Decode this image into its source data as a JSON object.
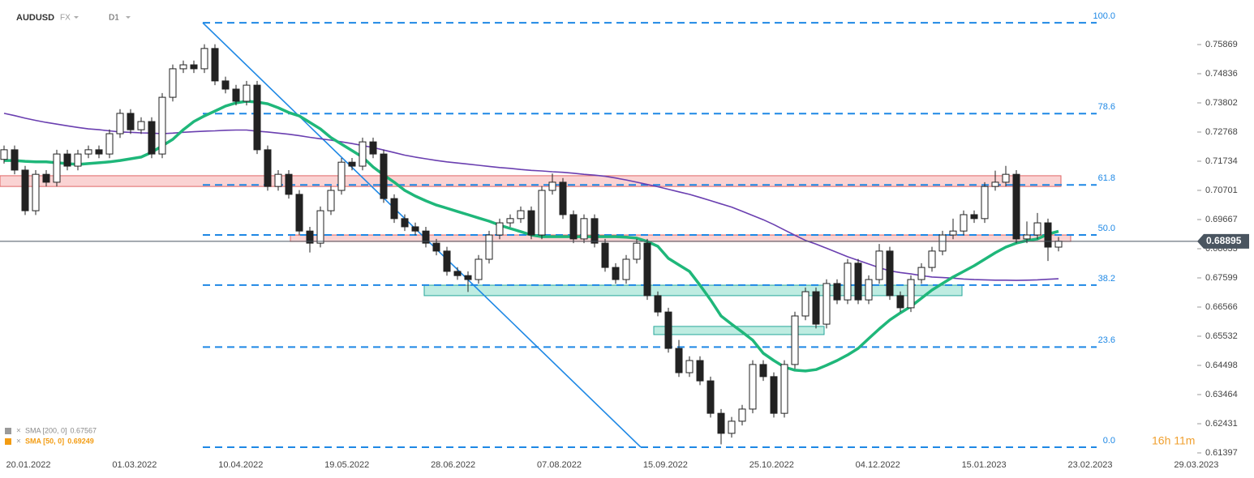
{
  "header": {
    "symbol": "AUDUSD",
    "market": "FX",
    "interval": "D1"
  },
  "chart_data": {
    "type": "candlestick",
    "ylim": [
      0.61225,
      0.77448
    ],
    "yticks": [
      0.61397,
      0.62431,
      0.63464,
      0.64498,
      0.65532,
      0.66566,
      0.67599,
      0.68633,
      0.69667,
      0.70701,
      0.71734,
      0.72768,
      0.73802,
      0.74836,
      0.75869
    ],
    "x_labels": [
      "20.01.2022",
      "01.03.2022",
      "10.04.2022",
      "19.05.2022",
      "28.06.2022",
      "07.08.2022",
      "15.09.2022",
      "25.10.2022",
      "04.12.2022",
      "15.01.2023",
      "23.02.2023",
      "29.03.2023"
    ],
    "last_price": 0.68895,
    "countdown": "16h 11m",
    "ohlc": [
      [
        0.718,
        0.7229,
        0.7165,
        0.7214
      ],
      [
        0.7214,
        0.7229,
        0.7127,
        0.7142
      ],
      [
        0.7142,
        0.7157,
        0.6983,
        0.6998
      ],
      [
        0.6998,
        0.7142,
        0.6983,
        0.7127
      ],
      [
        0.7127,
        0.7142,
        0.7084,
        0.7099
      ],
      [
        0.7099,
        0.7214,
        0.7084,
        0.7199
      ],
      [
        0.7199,
        0.7214,
        0.7141,
        0.7156
      ],
      [
        0.7156,
        0.7214,
        0.7141,
        0.7199
      ],
      [
        0.7199,
        0.7229,
        0.7184,
        0.7214
      ],
      [
        0.7214,
        0.7229,
        0.7184,
        0.7199
      ],
      [
        0.7199,
        0.7286,
        0.7184,
        0.7271
      ],
      [
        0.7271,
        0.7358,
        0.7256,
        0.7343
      ],
      [
        0.7343,
        0.7358,
        0.727,
        0.7285
      ],
      [
        0.7285,
        0.7329,
        0.727,
        0.7314
      ],
      [
        0.7314,
        0.7329,
        0.7184,
        0.7199
      ],
      [
        0.7199,
        0.7415,
        0.7184,
        0.74
      ],
      [
        0.74,
        0.7516,
        0.7385,
        0.7501
      ],
      [
        0.7501,
        0.753,
        0.7486,
        0.7515
      ],
      [
        0.7515,
        0.753,
        0.7486,
        0.7501
      ],
      [
        0.7501,
        0.7588,
        0.7486,
        0.7573
      ],
      [
        0.7573,
        0.7588,
        0.7443,
        0.7458
      ],
      [
        0.7458,
        0.7473,
        0.7414,
        0.7429
      ],
      [
        0.7429,
        0.7444,
        0.7371,
        0.7386
      ],
      [
        0.7386,
        0.7458,
        0.7371,
        0.7443
      ],
      [
        0.7443,
        0.7458,
        0.7199,
        0.7214
      ],
      [
        0.7214,
        0.7229,
        0.7069,
        0.7084
      ],
      [
        0.7084,
        0.7142,
        0.7069,
        0.7127
      ],
      [
        0.7127,
        0.7142,
        0.7041,
        0.7056
      ],
      [
        0.7056,
        0.7071,
        0.6911,
        0.6926
      ],
      [
        0.6926,
        0.6941,
        0.685,
        0.6883
      ],
      [
        0.6883,
        0.7013,
        0.6868,
        0.6998
      ],
      [
        0.6998,
        0.7085,
        0.6983,
        0.707
      ],
      [
        0.707,
        0.7185,
        0.7055,
        0.717
      ],
      [
        0.717,
        0.7185,
        0.7141,
        0.7156
      ],
      [
        0.7156,
        0.7257,
        0.7141,
        0.7242
      ],
      [
        0.7242,
        0.7257,
        0.7184,
        0.7199
      ],
      [
        0.7199,
        0.7214,
        0.7026,
        0.7041
      ],
      [
        0.7041,
        0.7056,
        0.6955,
        0.697
      ],
      [
        0.697,
        0.6985,
        0.6926,
        0.6941
      ],
      [
        0.6941,
        0.6956,
        0.6911,
        0.6926
      ],
      [
        0.6926,
        0.6941,
        0.6868,
        0.6883
      ],
      [
        0.6883,
        0.6898,
        0.684,
        0.6855
      ],
      [
        0.6855,
        0.687,
        0.6768,
        0.6783
      ],
      [
        0.6783,
        0.6798,
        0.6753,
        0.6768
      ],
      [
        0.6768,
        0.6783,
        0.671,
        0.6754
      ],
      [
        0.6754,
        0.6841,
        0.6739,
        0.6826
      ],
      [
        0.6826,
        0.6927,
        0.6811,
        0.6912
      ],
      [
        0.6912,
        0.697,
        0.6897,
        0.6955
      ],
      [
        0.6955,
        0.6985,
        0.694,
        0.697
      ],
      [
        0.697,
        0.7013,
        0.6955,
        0.6998
      ],
      [
        0.6998,
        0.7013,
        0.6897,
        0.6912
      ],
      [
        0.6912,
        0.7085,
        0.6897,
        0.707
      ],
      [
        0.707,
        0.713,
        0.7055,
        0.7099
      ],
      [
        0.7099,
        0.7114,
        0.6969,
        0.6984
      ],
      [
        0.6984,
        0.6999,
        0.6883,
        0.6898
      ],
      [
        0.6898,
        0.6985,
        0.6883,
        0.697
      ],
      [
        0.697,
        0.6985,
        0.6868,
        0.6883
      ],
      [
        0.6883,
        0.6898,
        0.6782,
        0.6797
      ],
      [
        0.6797,
        0.6812,
        0.6739,
        0.6754
      ],
      [
        0.6754,
        0.6841,
        0.6739,
        0.6826
      ],
      [
        0.6826,
        0.6898,
        0.6811,
        0.6883
      ],
      [
        0.6883,
        0.6898,
        0.6682,
        0.6697
      ],
      [
        0.6697,
        0.6712,
        0.6624,
        0.6639
      ],
      [
        0.6639,
        0.6654,
        0.6495,
        0.651
      ],
      [
        0.651,
        0.654,
        0.6409,
        0.6424
      ],
      [
        0.6424,
        0.6482,
        0.6409,
        0.6467
      ],
      [
        0.6467,
        0.6482,
        0.638,
        0.6395
      ],
      [
        0.6395,
        0.641,
        0.6265,
        0.628
      ],
      [
        0.628,
        0.6295,
        0.617,
        0.6209
      ],
      [
        0.6209,
        0.6267,
        0.6194,
        0.6252
      ],
      [
        0.6252,
        0.631,
        0.6237,
        0.6295
      ],
      [
        0.6295,
        0.6468,
        0.628,
        0.6453
      ],
      [
        0.6453,
        0.6468,
        0.6395,
        0.641
      ],
      [
        0.641,
        0.6425,
        0.6265,
        0.628
      ],
      [
        0.628,
        0.6468,
        0.6265,
        0.6453
      ],
      [
        0.6453,
        0.664,
        0.6438,
        0.6625
      ],
      [
        0.6625,
        0.6726,
        0.661,
        0.6711
      ],
      [
        0.6711,
        0.6726,
        0.6581,
        0.6596
      ],
      [
        0.6596,
        0.6755,
        0.6581,
        0.674
      ],
      [
        0.674,
        0.6755,
        0.6667,
        0.6682
      ],
      [
        0.6682,
        0.6827,
        0.6667,
        0.6812
      ],
      [
        0.6812,
        0.6827,
        0.6667,
        0.6682
      ],
      [
        0.6682,
        0.6769,
        0.6667,
        0.6754
      ],
      [
        0.6754,
        0.688,
        0.6739,
        0.6855
      ],
      [
        0.6855,
        0.687,
        0.6682,
        0.6697
      ],
      [
        0.6697,
        0.6712,
        0.6639,
        0.6654
      ],
      [
        0.6654,
        0.6769,
        0.6639,
        0.6754
      ],
      [
        0.6754,
        0.6812,
        0.6739,
        0.6797
      ],
      [
        0.6797,
        0.687,
        0.6782,
        0.6855
      ],
      [
        0.6855,
        0.6927,
        0.684,
        0.6912
      ],
      [
        0.6912,
        0.697,
        0.6897,
        0.6926
      ],
      [
        0.6926,
        0.6999,
        0.6911,
        0.6984
      ],
      [
        0.6984,
        0.6999,
        0.6955,
        0.697
      ],
      [
        0.697,
        0.7099,
        0.6955,
        0.7084
      ],
      [
        0.7084,
        0.714,
        0.7069,
        0.7099
      ],
      [
        0.7099,
        0.7157,
        0.7084,
        0.7127
      ],
      [
        0.7127,
        0.7142,
        0.6883,
        0.6898
      ],
      [
        0.6898,
        0.696,
        0.6883,
        0.6912
      ],
      [
        0.6912,
        0.699,
        0.6897,
        0.6955
      ],
      [
        0.6955,
        0.697,
        0.682,
        0.6869
      ],
      [
        0.6869,
        0.6905,
        0.6854,
        0.689
      ]
    ],
    "series": [
      {
        "name": "SMA [200, 0]",
        "color": "#6a3fb0",
        "label_color": "#8a8a8a",
        "last": 0.67567,
        "values": [
          0.7343,
          0.7335,
          0.7326,
          0.7318,
          0.7311,
          0.7305,
          0.7299,
          0.7293,
          0.7288,
          0.7285,
          0.7281,
          0.7277,
          0.7276,
          0.7274,
          0.7273,
          0.7271,
          0.7273,
          0.7276,
          0.7278,
          0.728,
          0.7281,
          0.7283,
          0.7284,
          0.7284,
          0.728,
          0.7277,
          0.7273,
          0.7269,
          0.7264,
          0.7258,
          0.7253,
          0.7248,
          0.7242,
          0.7236,
          0.7229,
          0.7222,
          0.7213,
          0.7204,
          0.7195,
          0.7188,
          0.7182,
          0.7176,
          0.7171,
          0.7167,
          0.7163,
          0.7159,
          0.7155,
          0.7151,
          0.7148,
          0.7144,
          0.7141,
          0.7139,
          0.7136,
          0.7134,
          0.7131,
          0.7127,
          0.7124,
          0.712,
          0.7114,
          0.7107,
          0.7099,
          0.7091,
          0.7083,
          0.7074,
          0.7065,
          0.7056,
          0.7045,
          0.7034,
          0.7022,
          0.7011,
          0.6996,
          0.6981,
          0.6966,
          0.6949,
          0.693,
          0.6911,
          0.6893,
          0.688,
          0.6865,
          0.685,
          0.6835,
          0.6822,
          0.6809,
          0.6796,
          0.6785,
          0.6779,
          0.6774,
          0.6768,
          0.6763,
          0.6761,
          0.6759,
          0.6756,
          0.6754,
          0.6753,
          0.6752,
          0.6752,
          0.6751,
          0.6752,
          0.6753,
          0.6755,
          0.67567
        ]
      },
      {
        "name": "SMA [50, 0]",
        "color": "#1fb77a",
        "label_color": "#f39c12",
        "last": 0.69249,
        "values": [
          0.7176,
          0.7176,
          0.7173,
          0.7171,
          0.7171,
          0.7168,
          0.7165,
          0.7162,
          0.7165,
          0.7168,
          0.7171,
          0.7176,
          0.7182,
          0.7188,
          0.7205,
          0.7228,
          0.7251,
          0.7285,
          0.7314,
          0.7334,
          0.7351,
          0.7369,
          0.738,
          0.7386,
          0.7383,
          0.7377,
          0.7363,
          0.7346,
          0.7334,
          0.7311,
          0.7288,
          0.7257,
          0.7234,
          0.7211,
          0.7188,
          0.7153,
          0.7125,
          0.7099,
          0.707,
          0.705,
          0.7033,
          0.7018,
          0.7007,
          0.6995,
          0.6984,
          0.6972,
          0.6961,
          0.6947,
          0.6935,
          0.6924,
          0.6912,
          0.6906,
          0.6906,
          0.6906,
          0.6906,
          0.6906,
          0.6906,
          0.6906,
          0.6906,
          0.6904,
          0.6901,
          0.6889,
          0.6872,
          0.6829,
          0.6806,
          0.6783,
          0.6734,
          0.6682,
          0.6625,
          0.6596,
          0.6568,
          0.6539,
          0.6493,
          0.6467,
          0.6444,
          0.6433,
          0.643,
          0.6435,
          0.645,
          0.6467,
          0.6487,
          0.651,
          0.6545,
          0.6579,
          0.6611,
          0.6636,
          0.6659,
          0.6688,
          0.6717,
          0.674,
          0.6763,
          0.6783,
          0.6803,
          0.6826,
          0.6849,
          0.6869,
          0.6883,
          0.6892,
          0.6898,
          0.6915,
          0.69249
        ]
      }
    ],
    "fibonacci": {
      "high": 0.7664,
      "low": 0.616,
      "color": "#1e88e5",
      "levels": [
        {
          "value": 100,
          "label": "100.0"
        },
        {
          "value": 78.6,
          "label": "78.6"
        },
        {
          "value": 61.8,
          "label": "61.8"
        },
        {
          "value": 50,
          "label": "50.0"
        },
        {
          "value": 38.2,
          "label": "38.2"
        },
        {
          "value": 23.6,
          "label": "23.6"
        },
        {
          "value": 0,
          "label": "0.0"
        }
      ]
    },
    "zones": [
      {
        "top": 0.7122,
        "bottom": 0.7084,
        "fill": "rgba(240,110,110,0.3)",
        "stroke": "#e06666"
      },
      {
        "top": 0.6912,
        "bottom": 0.6889,
        "fill": "rgba(240,110,110,0.3)",
        "stroke": "#e06666"
      },
      {
        "top": 0.6734,
        "bottom": 0.6697,
        "fill": "rgba(70,200,170,0.35)",
        "stroke": "#26a69a"
      },
      {
        "top": 0.6588,
        "bottom": 0.6559,
        "fill": "rgba(70,200,170,0.35)",
        "stroke": "#26a69a"
      }
    ]
  }
}
